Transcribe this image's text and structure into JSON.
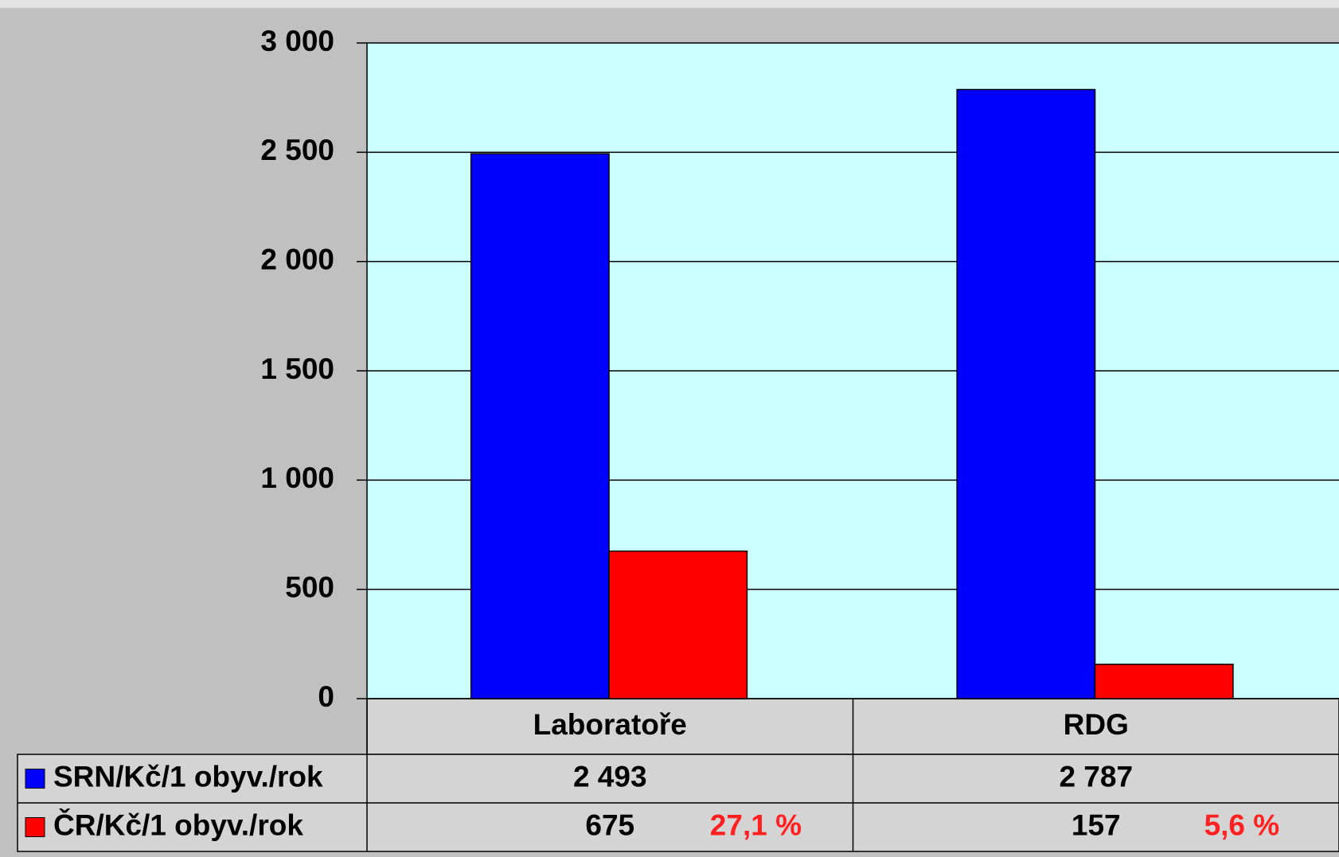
{
  "chart_data": {
    "type": "bar",
    "categories": [
      "Laboratoře",
      "RDG"
    ],
    "series": [
      {
        "name": "SRN/Kč/1 obyv./rok",
        "color": "#0000ff",
        "values": [
          2493,
          2787
        ],
        "value_labels": [
          "2 493",
          "2 787"
        ]
      },
      {
        "name": "ČR/Kč/1 obyv./rok",
        "color": "#ff0000",
        "values": [
          675,
          157
        ],
        "annotations": [
          "27,1 %",
          "5,6 %"
        ]
      }
    ],
    "ylim": [
      0,
      3000
    ],
    "yticks": [
      0,
      500,
      {
        "value": 1000,
        "label": "1 000"
      },
      {
        "value": 1500,
        "label": "1 500"
      },
      {
        "value": 2000,
        "label": "2 000"
      },
      {
        "value": 2500,
        "label": "2 500"
      },
      {
        "value": 3000,
        "label": "3 000"
      }
    ],
    "grid": true,
    "plot_background": "#ccffff"
  }
}
